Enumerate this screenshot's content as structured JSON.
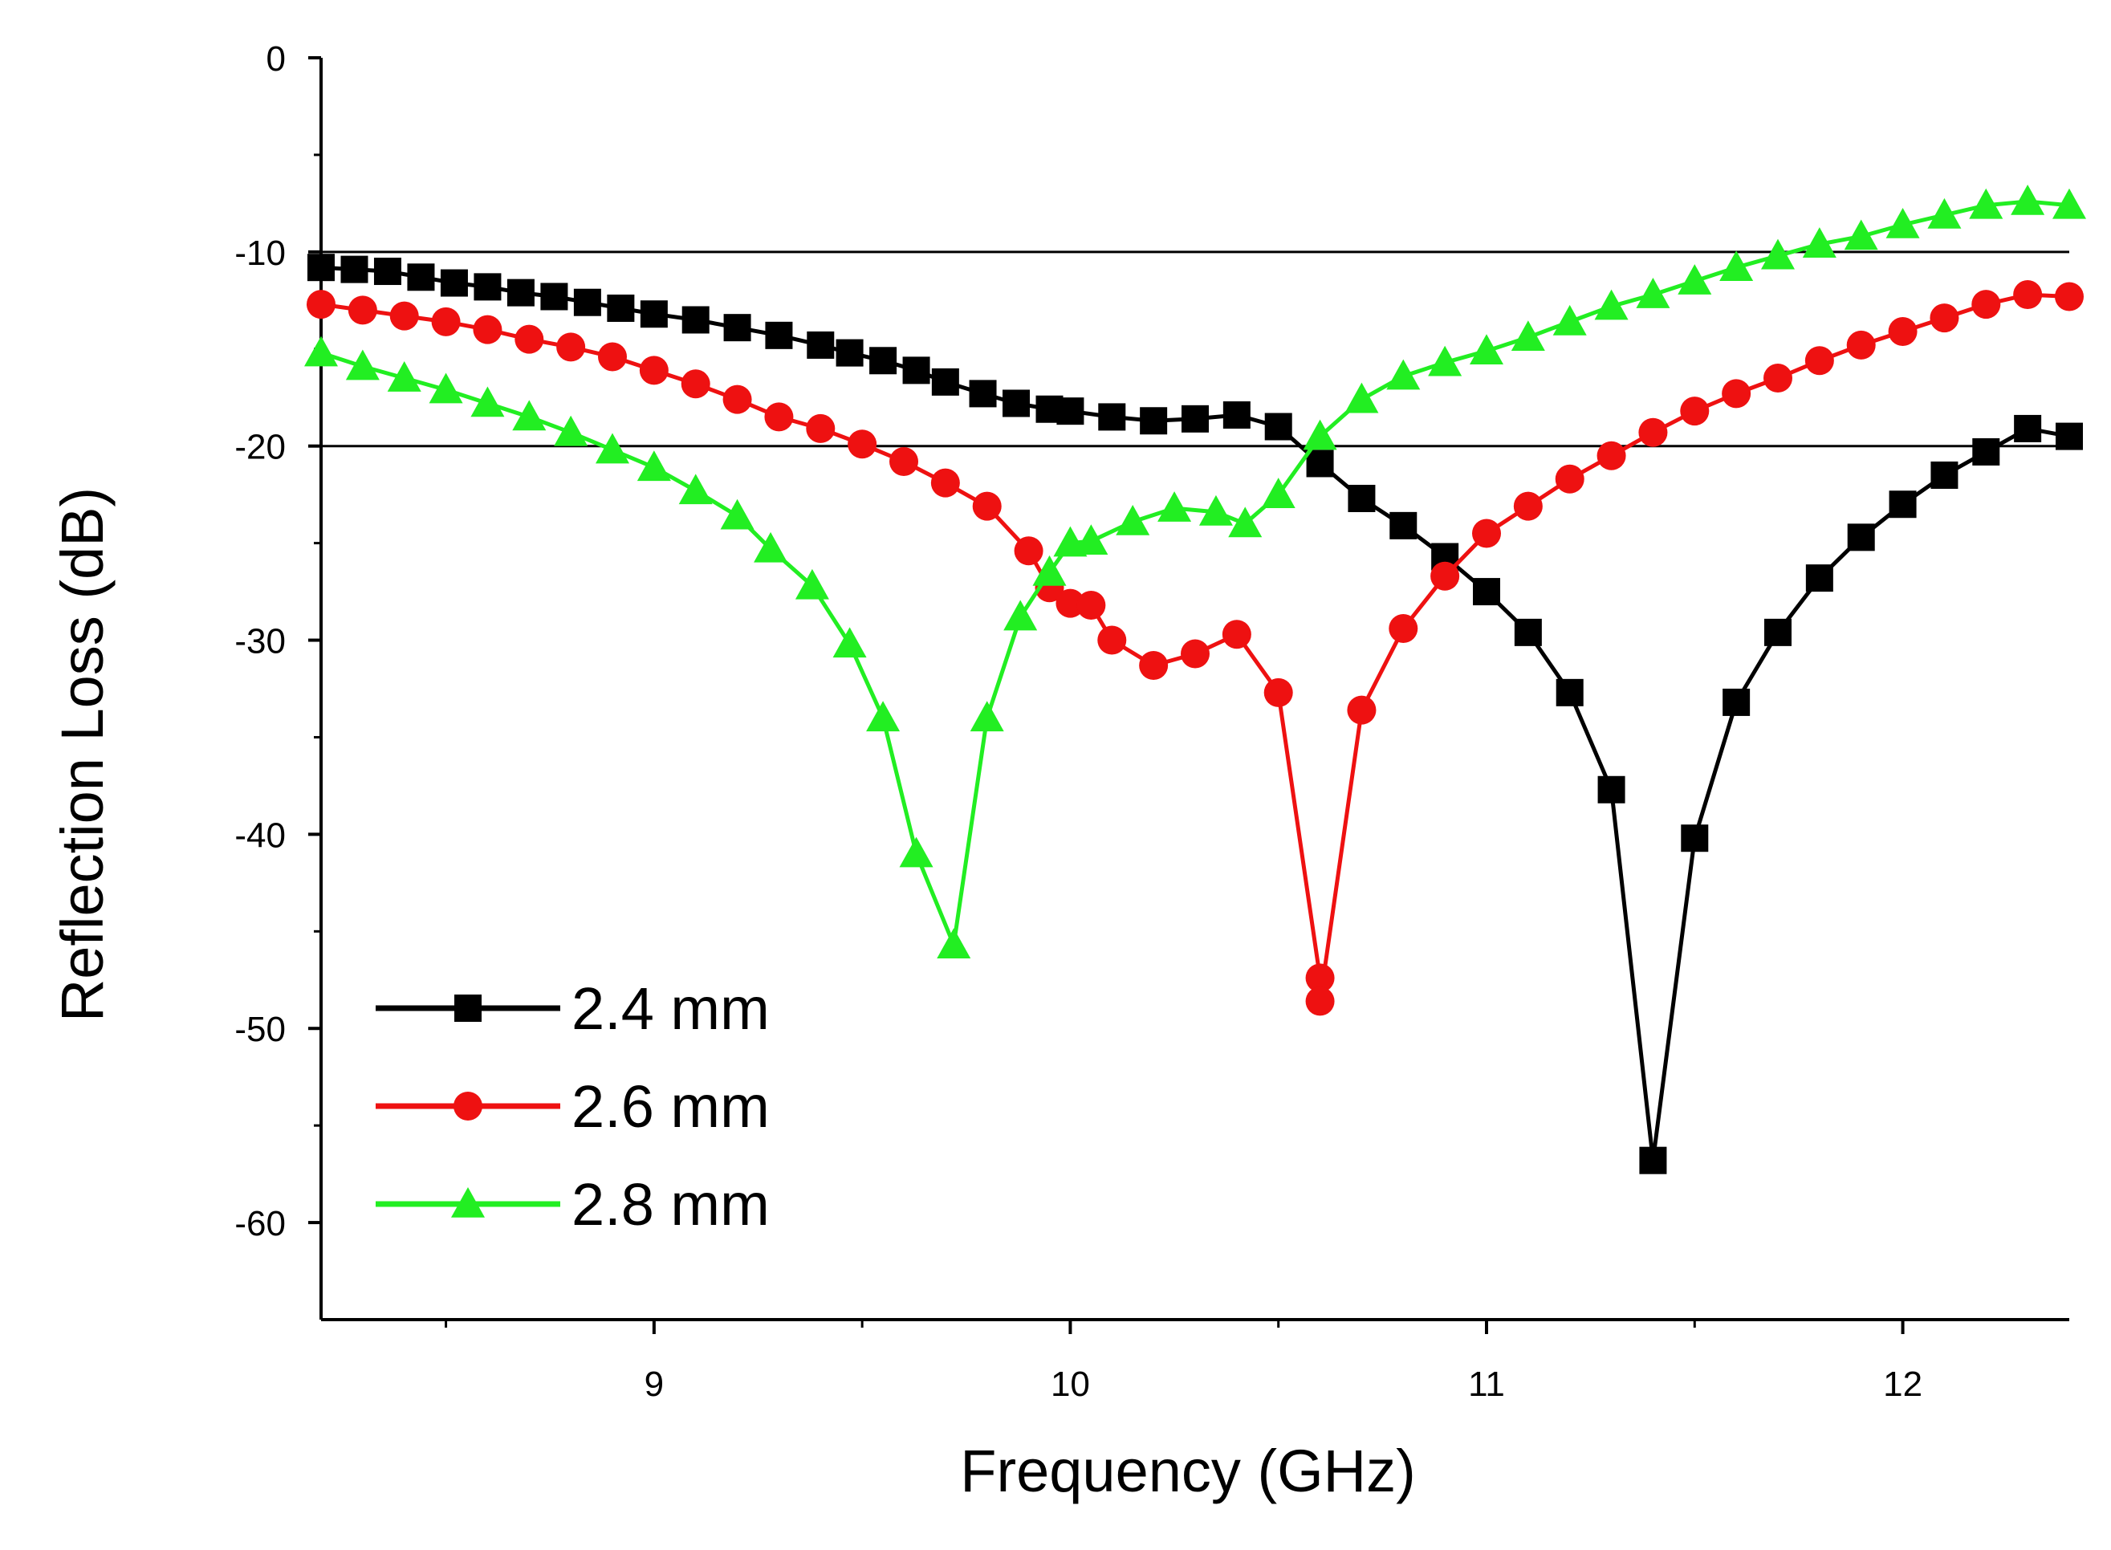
{
  "chart_data": {
    "type": "line",
    "title": "",
    "xlabel": "Frequency (GHz)",
    "ylabel": "Reflection Loss (dB)",
    "xlim": [
      8.2,
      12.4
    ],
    "ylim": [
      -65,
      0
    ],
    "xticks": [
      9,
      10,
      11,
      12
    ],
    "xtick_labels": [
      "9",
      "10",
      "11",
      "12"
    ],
    "xminor": [
      8.5,
      9.5,
      10.5,
      11.5
    ],
    "yticks": [
      0,
      -10,
      -20,
      -30,
      -40,
      -50,
      -60
    ],
    "ytick_labels": [
      "0",
      "-10",
      "-20",
      "-30",
      "-40",
      "-50",
      "-60"
    ],
    "yminor": [
      -5,
      -15,
      -25,
      -35,
      -45,
      -55
    ],
    "reference_lines": [
      -10,
      -20
    ],
    "legend_position": "bottom-left",
    "grid": false,
    "series": [
      {
        "name": "2.4 mm",
        "color": "#000000",
        "marker": "square",
        "points": [
          [
            8.2,
            -10.8
          ],
          [
            8.28,
            -10.9
          ],
          [
            8.36,
            -11.0
          ],
          [
            8.44,
            -11.3
          ],
          [
            8.52,
            -11.6
          ],
          [
            8.6,
            -11.8
          ],
          [
            8.68,
            -12.1
          ],
          [
            8.76,
            -12.3
          ],
          [
            8.84,
            -12.6
          ],
          [
            8.92,
            -12.9
          ],
          [
            9.0,
            -13.2
          ],
          [
            9.1,
            -13.5
          ],
          [
            9.2,
            -13.9
          ],
          [
            9.3,
            -14.3
          ],
          [
            9.4,
            -14.8
          ],
          [
            9.47,
            -15.2
          ],
          [
            9.55,
            -15.6
          ],
          [
            9.63,
            -16.1
          ],
          [
            9.7,
            -16.7
          ],
          [
            9.79,
            -17.3
          ],
          [
            9.87,
            -17.8
          ],
          [
            9.95,
            -18.1
          ],
          [
            10.0,
            -18.2
          ],
          [
            10.1,
            -18.5
          ],
          [
            10.2,
            -18.7
          ],
          [
            10.3,
            -18.6
          ],
          [
            10.4,
            -18.4
          ],
          [
            10.5,
            -19.0
          ],
          [
            10.6,
            -20.9
          ],
          [
            10.7,
            -22.7
          ],
          [
            10.8,
            -24.1
          ],
          [
            10.9,
            -25.7
          ],
          [
            11.0,
            -27.5
          ],
          [
            11.1,
            -29.6
          ],
          [
            11.2,
            -32.7
          ],
          [
            11.3,
            -37.7
          ],
          [
            11.4,
            -56.8
          ],
          [
            11.5,
            -40.2
          ],
          [
            11.6,
            -33.2
          ],
          [
            11.7,
            -29.6
          ],
          [
            11.8,
            -26.8
          ],
          [
            11.9,
            -24.7
          ],
          [
            12.0,
            -23.0
          ],
          [
            12.1,
            -21.5
          ],
          [
            12.2,
            -20.3
          ],
          [
            12.3,
            -19.1
          ],
          [
            12.4,
            -19.5
          ]
        ]
      },
      {
        "name": "2.6 mm",
        "color": "#ee1111",
        "marker": "circle",
        "points": [
          [
            8.2,
            -12.7
          ],
          [
            8.3,
            -13.0
          ],
          [
            8.4,
            -13.3
          ],
          [
            8.5,
            -13.6
          ],
          [
            8.6,
            -14.0
          ],
          [
            8.7,
            -14.5
          ],
          [
            8.8,
            -14.9
          ],
          [
            8.9,
            -15.4
          ],
          [
            9.0,
            -16.1
          ],
          [
            9.1,
            -16.8
          ],
          [
            9.2,
            -17.6
          ],
          [
            9.3,
            -18.5
          ],
          [
            9.4,
            -19.1
          ],
          [
            9.5,
            -19.9
          ],
          [
            9.6,
            -20.8
          ],
          [
            9.7,
            -21.9
          ],
          [
            9.8,
            -23.1
          ],
          [
            9.9,
            -25.4
          ],
          [
            9.95,
            -27.3
          ],
          [
            10.0,
            -28.1
          ],
          [
            10.05,
            -28.2
          ],
          [
            10.1,
            -30.0
          ],
          [
            10.2,
            -31.3
          ],
          [
            10.3,
            -30.7
          ],
          [
            10.4,
            -29.7
          ],
          [
            10.5,
            -32.7
          ],
          [
            10.6,
            -47.4
          ],
          [
            10.6,
            -48.6
          ],
          [
            10.7,
            -33.6
          ],
          [
            10.8,
            -29.4
          ],
          [
            10.9,
            -26.7
          ],
          [
            11.0,
            -24.5
          ],
          [
            11.1,
            -23.1
          ],
          [
            11.2,
            -21.7
          ],
          [
            11.3,
            -20.5
          ],
          [
            11.4,
            -19.3
          ],
          [
            11.5,
            -18.2
          ],
          [
            11.6,
            -17.3
          ],
          [
            11.7,
            -16.5
          ],
          [
            11.8,
            -15.6
          ],
          [
            11.9,
            -14.8
          ],
          [
            12.0,
            -14.1
          ],
          [
            12.1,
            -13.4
          ],
          [
            12.2,
            -12.7
          ],
          [
            12.3,
            -12.2
          ],
          [
            12.4,
            -12.3
          ]
        ]
      },
      {
        "name": "2.8 mm",
        "color": "#22ee22",
        "marker": "triangle",
        "points": [
          [
            8.2,
            -15.2
          ],
          [
            8.3,
            -15.9
          ],
          [
            8.4,
            -16.5
          ],
          [
            8.5,
            -17.1
          ],
          [
            8.6,
            -17.8
          ],
          [
            8.7,
            -18.5
          ],
          [
            8.8,
            -19.3
          ],
          [
            8.9,
            -20.2
          ],
          [
            9.0,
            -21.1
          ],
          [
            9.1,
            -22.3
          ],
          [
            9.2,
            -23.6
          ],
          [
            9.28,
            -25.3
          ],
          [
            9.38,
            -27.2
          ],
          [
            9.47,
            -30.2
          ],
          [
            9.55,
            -34.0
          ],
          [
            9.63,
            -41.0
          ],
          [
            9.72,
            -45.7
          ],
          [
            9.8,
            -34.0
          ],
          [
            9.88,
            -28.8
          ],
          [
            9.95,
            -26.5
          ],
          [
            10.0,
            -25.0
          ],
          [
            10.05,
            -24.9
          ],
          [
            10.15,
            -23.9
          ],
          [
            10.25,
            -23.2
          ],
          [
            10.35,
            -23.4
          ],
          [
            10.42,
            -24.0
          ],
          [
            10.5,
            -22.5
          ],
          [
            10.6,
            -19.5
          ],
          [
            10.7,
            -17.6
          ],
          [
            10.8,
            -16.4
          ],
          [
            10.9,
            -15.7
          ],
          [
            11.0,
            -15.1
          ],
          [
            11.1,
            -14.4
          ],
          [
            11.2,
            -13.6
          ],
          [
            11.3,
            -12.8
          ],
          [
            11.4,
            -12.2
          ],
          [
            11.5,
            -11.5
          ],
          [
            11.6,
            -10.8
          ],
          [
            11.7,
            -10.2
          ],
          [
            11.8,
            -9.6
          ],
          [
            11.9,
            -9.2
          ],
          [
            12.0,
            -8.6
          ],
          [
            12.1,
            -8.1
          ],
          [
            12.2,
            -7.6
          ],
          [
            12.3,
            -7.4
          ],
          [
            12.4,
            -7.6
          ]
        ]
      }
    ]
  }
}
